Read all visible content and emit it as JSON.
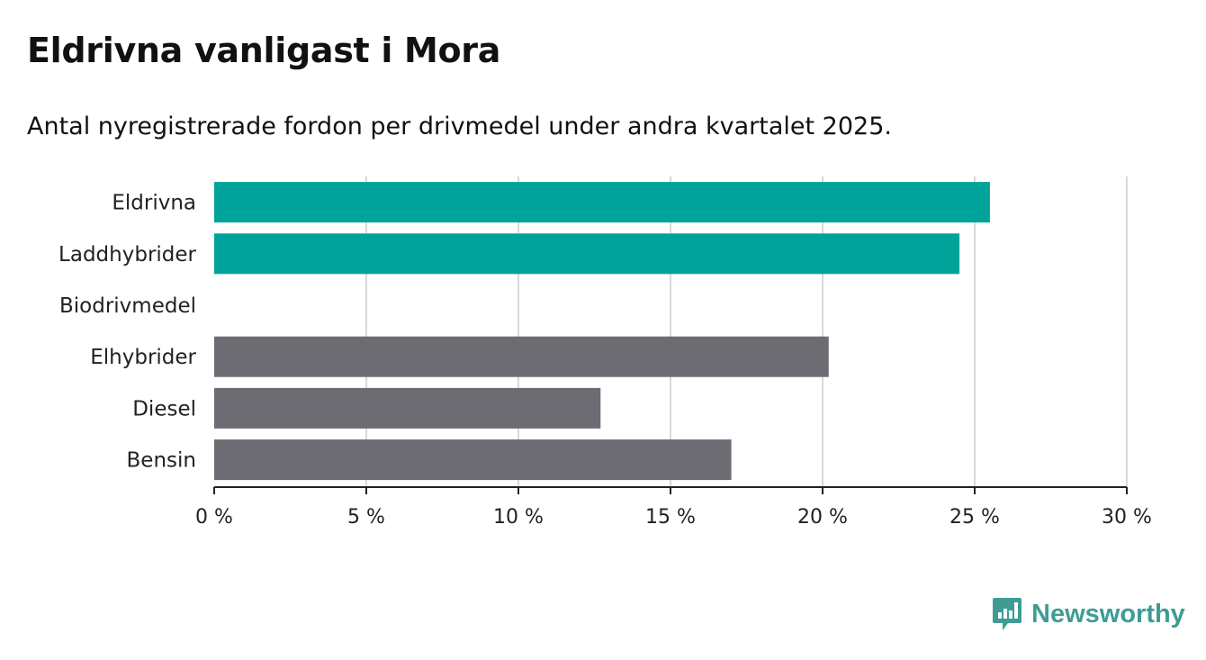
{
  "header": {
    "title": "Eldrivna vanligast i Mora",
    "subtitle": "Antal nyregistrerade fordon per drivmedel under andra kvartalet 2025."
  },
  "brand": {
    "name": "Newsworthy",
    "color": "#3d9d94",
    "icon": "bar-chart-speech-bubble-icon"
  },
  "colors": {
    "highlight": "#00a39a",
    "default": "#6d6c72",
    "grid": "#d9d9d9",
    "axis": "#222222"
  },
  "chart_data": {
    "type": "bar",
    "orientation": "horizontal",
    "categories": [
      "Eldrivna",
      "Laddhybrider",
      "Biodrivmedel",
      "Elhybrider",
      "Diesel",
      "Bensin"
    ],
    "values": [
      25.5,
      24.5,
      0,
      20.2,
      12.7,
      17.0
    ],
    "highlighted": [
      true,
      true,
      false,
      false,
      false,
      false
    ],
    "unit": "%",
    "xlim": [
      0,
      30
    ],
    "xticks": [
      0,
      5,
      10,
      15,
      20,
      25,
      30
    ],
    "xtick_labels": [
      "0 %",
      "5 %",
      "10 %",
      "15 %",
      "20 %",
      "25 %",
      "30 %"
    ],
    "grid": true
  }
}
